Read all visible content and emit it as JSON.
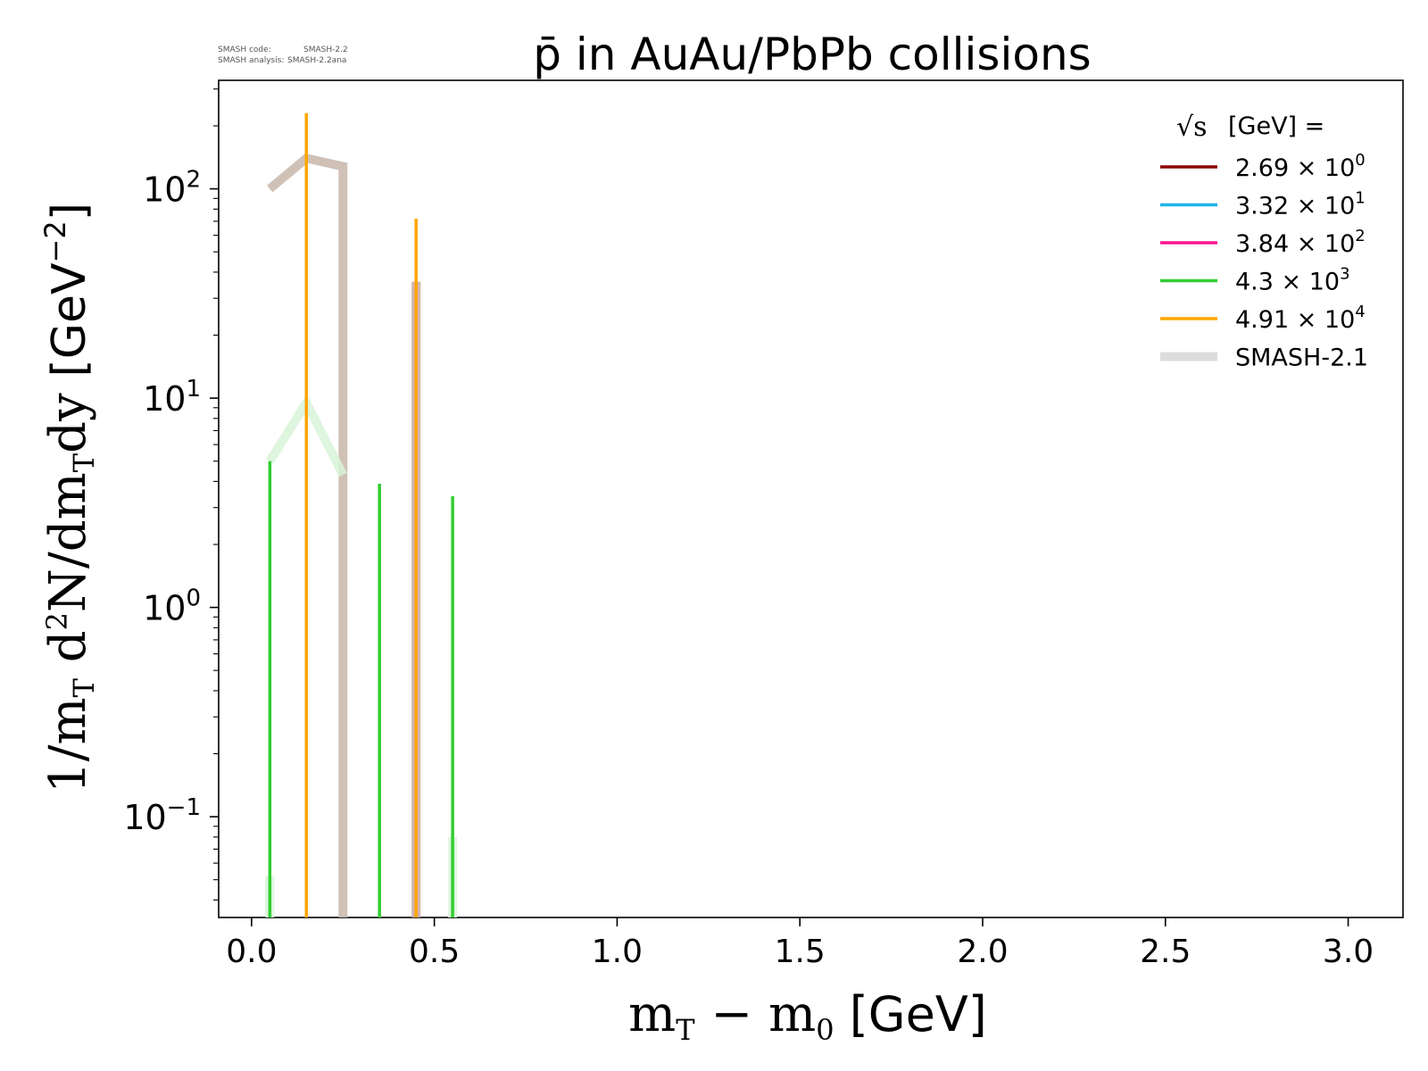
{
  "header_note": {
    "line1_label": "SMASH code:",
    "line1_value": "SMASH-2.2",
    "line2_label": "SMASH analysis:",
    "line2_value": "SMASH-2.2ana"
  },
  "chart_data": {
    "type": "line",
    "title": "p̄ in AuAu/PbPb collisions",
    "xlabel": "m_T − m_0 [GeV]",
    "ylabel": "1/m_T d²N/dm_Tdy [GeV⁻²]",
    "xlim": [
      -0.09,
      3.15
    ],
    "ylim": [
      0.033,
      330
    ],
    "yscale": "log",
    "grid": false,
    "x_ticks": [
      0.0,
      0.5,
      1.0,
      1.5,
      2.0,
      2.5,
      3.0
    ],
    "x_tick_labels": [
      "0.0",
      "0.5",
      "1.0",
      "1.5",
      "2.0",
      "2.5",
      "3.0"
    ],
    "y_ticks": [
      0.1,
      1,
      10,
      100
    ],
    "y_tick_labels": [
      {
        "base": "10",
        "exp": "−1"
      },
      {
        "base": "10",
        "exp": "0"
      },
      {
        "base": "10",
        "exp": "1"
      },
      {
        "base": "10",
        "exp": "2"
      }
    ],
    "legend": {
      "location": "top-right",
      "title": "√s  [GeV] =",
      "entries": [
        {
          "mantissa": "2.69",
          "exp": "0",
          "color": "#8b0000",
          "style": "thin"
        },
        {
          "mantissa": "3.32",
          "exp": "1",
          "color": "#1fb3e8",
          "style": "thin"
        },
        {
          "mantissa": "3.84",
          "exp": "2",
          "color": "#ff1493",
          "style": "thin"
        },
        {
          "mantissa": "4.3",
          "exp": "3",
          "color": "#32cd32",
          "style": "thin"
        },
        {
          "mantissa": "4.91",
          "exp": "4",
          "color": "#ffa500",
          "style": "thin"
        },
        {
          "label": "SMASH-2.1",
          "color": "#dcdcdc",
          "style": "thick"
        }
      ]
    },
    "series": [
      {
        "color": "#32cd32",
        "x": [
          0.05,
          0.35,
          0.55
        ],
        "y": [
          5.0,
          3.9,
          3.4
        ]
      },
      {
        "color": "#ffa500",
        "x": [
          0.15,
          0.45
        ],
        "y": [
          230,
          72
        ]
      }
    ],
    "reference_series": [
      {
        "color": "#c8b6aa",
        "x": [
          0.05,
          0.15,
          0.25,
          0.25
        ],
        "y": [
          100,
          140,
          128,
          0.033
        ]
      },
      {
        "color": "#c9a6a6",
        "x": [
          0.45,
          0.45
        ],
        "y": [
          36,
          0.033
        ]
      },
      {
        "color": "#d8f3d8",
        "x": [
          0.05,
          0.15,
          0.25
        ],
        "y": [
          5.0,
          9.5,
          4.3
        ]
      },
      {
        "color": "#d8f3d8",
        "x": [
          0.05,
          0.05
        ],
        "y": [
          0.052,
          0.033
        ]
      },
      {
        "color": "#d8f3d8",
        "x": [
          0.55,
          0.55
        ],
        "y": [
          0.08,
          0.033
        ]
      }
    ]
  }
}
